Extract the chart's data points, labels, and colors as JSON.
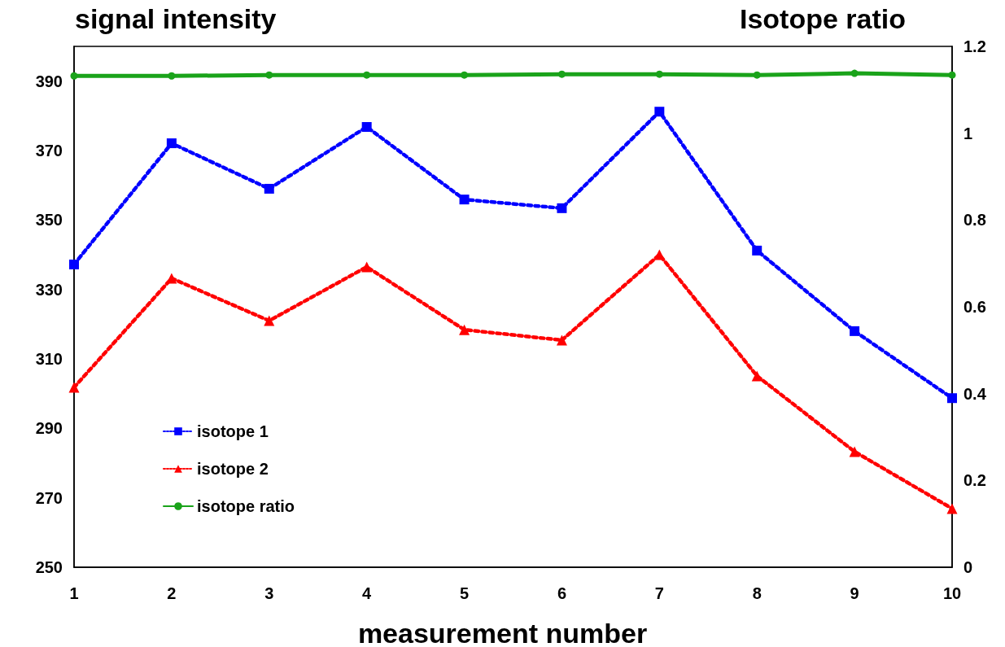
{
  "chart_data": {
    "type": "line",
    "xlabel": "measurement number",
    "ylabel": "signal intensity",
    "y2label": "Isotope ratio",
    "categories": [
      "1",
      "2",
      "3",
      "4",
      "5",
      "6",
      "7",
      "8",
      "9",
      "10"
    ],
    "series": [
      {
        "name": "isotope 1",
        "color": "#0000ff",
        "marker": "square",
        "line_style": "dotted",
        "values": [
          337.2,
          372.1,
          359,
          376.8,
          355.9,
          353.4,
          381.2,
          341.2,
          318,
          298.7
        ]
      },
      {
        "name": "isotope 2",
        "color": "#ff0000",
        "marker": "triangle",
        "line_style": "dotted",
        "values": [
          301.8,
          333.2,
          321,
          336.5,
          318.4,
          315.4,
          340,
          305.1,
          283.3,
          266.9
        ]
      },
      {
        "name": "isotope ratio",
        "color": "#1aa31a",
        "marker": "circle",
        "line_style": "solid",
        "axis": "y2",
        "values": [
          1.132,
          1.132,
          1.134,
          1.134,
          1.134,
          1.136,
          1.136,
          1.134,
          1.138,
          1.134
        ]
      }
    ],
    "ylim": [
      250,
      400
    ],
    "yticks": [
      250,
      270,
      290,
      310,
      330,
      350,
      370,
      390
    ],
    "y2lim": [
      0,
      1.2
    ],
    "y2ticks": [
      0,
      0.2,
      0.4,
      0.6,
      0.8,
      1,
      1.2
    ],
    "grid": false,
    "legend": "bottom left"
  }
}
